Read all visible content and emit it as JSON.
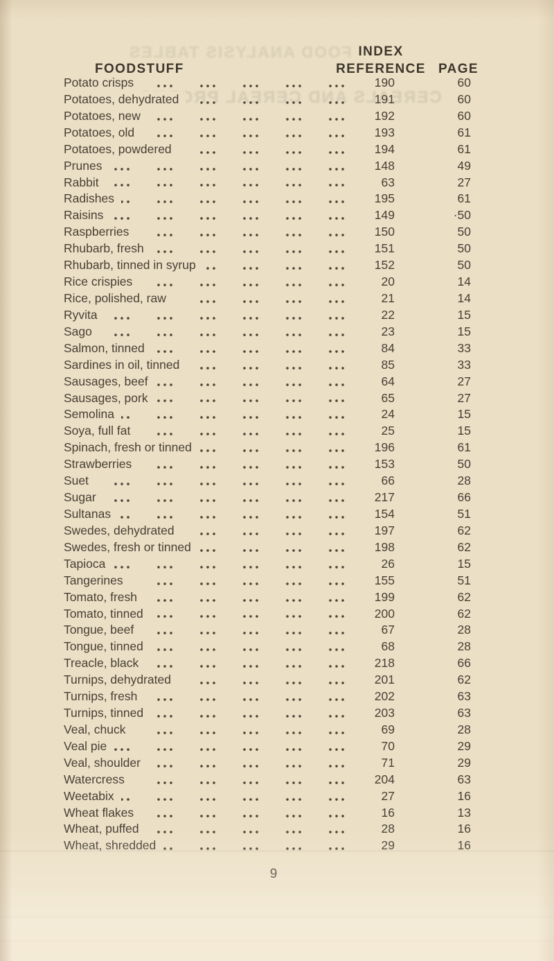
{
  "header": {
    "foodstuff_label": "FOODSTUFF",
    "index_label": "INDEX",
    "reference_label": "REFERENCE",
    "page_label": "PAGE"
  },
  "rows": [
    {
      "name": "Potato crisps",
      "ref": "190",
      "page": "60"
    },
    {
      "name": "Potatoes, dehydrated",
      "ref": "191",
      "page": "60"
    },
    {
      "name": "Potatoes, new",
      "ref": "192",
      "page": "60"
    },
    {
      "name": "Potatoes, old",
      "ref": "193",
      "page": "61"
    },
    {
      "name": "Potatoes, powdered",
      "ref": "194",
      "page": "61"
    },
    {
      "name": "Prunes",
      "ref": "148",
      "page": "49"
    },
    {
      "name": "Rabbit",
      "ref": "63",
      "page": "27"
    },
    {
      "name": "Radishes",
      "ref": "195",
      "page": "61"
    },
    {
      "name": "Raisins",
      "ref": "149",
      "page": "·50"
    },
    {
      "name": "Raspberries",
      "ref": "150",
      "page": "50"
    },
    {
      "name": "Rhubarb, fresh",
      "ref": "151",
      "page": "50"
    },
    {
      "name": "Rhubarb, tinned in syrup",
      "ref": "152",
      "page": "50"
    },
    {
      "name": "Rice crispies",
      "ref": "20",
      "page": "14"
    },
    {
      "name": "Rice, polished, raw",
      "ref": "21",
      "page": "14"
    },
    {
      "name": "Ryvita",
      "ref": "22",
      "page": "15"
    },
    {
      "name": "Sago",
      "ref": "23",
      "page": "15"
    },
    {
      "name": "Salmon, tinned",
      "ref": "84",
      "page": "33"
    },
    {
      "name": "Sardines in oil, tinned",
      "ref": "85",
      "page": "33"
    },
    {
      "name": "Sausages, beef",
      "ref": "64",
      "page": "27"
    },
    {
      "name": "Sausages, pork",
      "ref": "65",
      "page": "27"
    },
    {
      "name": "Semolina",
      "ref": "24",
      "page": "15"
    },
    {
      "name": "Soya, full fat",
      "ref": "25",
      "page": "15"
    },
    {
      "name": "Spinach, fresh or tinned",
      "ref": "196",
      "page": "61"
    },
    {
      "name": "Strawberries",
      "ref": "153",
      "page": "50"
    },
    {
      "name": "Suet",
      "ref": "66",
      "page": "28"
    },
    {
      "name": "Sugar",
      "ref": "217",
      "page": "66"
    },
    {
      "name": "Sultanas",
      "ref": "154",
      "page": "51"
    },
    {
      "name": "Swedes, dehydrated",
      "ref": "197",
      "page": "62"
    },
    {
      "name": "Swedes, fresh or tinned",
      "ref": "198",
      "page": "62"
    },
    {
      "name": "Tapioca",
      "ref": "26",
      "page": "15"
    },
    {
      "name": "Tangerines",
      "ref": "155",
      "page": "51"
    },
    {
      "name": "Tomato, fresh",
      "ref": "199",
      "page": "62"
    },
    {
      "name": "Tomato, tinned",
      "ref": "200",
      "page": "62"
    },
    {
      "name": "Tongue, beef",
      "ref": "67",
      "page": "28"
    },
    {
      "name": "Tongue, tinned",
      "ref": "68",
      "page": "28"
    },
    {
      "name": "Treacle, black",
      "ref": "218",
      "page": "66"
    },
    {
      "name": "Turnips, dehydrated",
      "ref": "201",
      "page": "62"
    },
    {
      "name": "Turnips, fresh",
      "ref": "202",
      "page": "63"
    },
    {
      "name": "Turnips, tinned",
      "ref": "203",
      "page": "63"
    },
    {
      "name": "Veal, chuck",
      "ref": "69",
      "page": "28"
    },
    {
      "name": "Veal pie",
      "ref": "70",
      "page": "29"
    },
    {
      "name": "Veal, shoulder",
      "ref": "71",
      "page": "29"
    },
    {
      "name": "Watercress",
      "ref": "204",
      "page": "63"
    },
    {
      "name": "Weetabix",
      "ref": "27",
      "page": "16"
    },
    {
      "name": "Wheat flakes",
      "ref": "16",
      "page": "13"
    },
    {
      "name": "Wheat, puffed",
      "ref": "28",
      "page": "16"
    },
    {
      "name": "Wheat, shredded",
      "ref": "29",
      "page": "16"
    }
  ],
  "footer": {
    "page_number": "9"
  },
  "ghost": {
    "line1": "FOOD ANALYSIS TABLES",
    "line2": "CEREALS AND CEREAL PRODUCTS"
  },
  "colors": {
    "paper": "#ebdfc5",
    "ink": "#483f34"
  }
}
